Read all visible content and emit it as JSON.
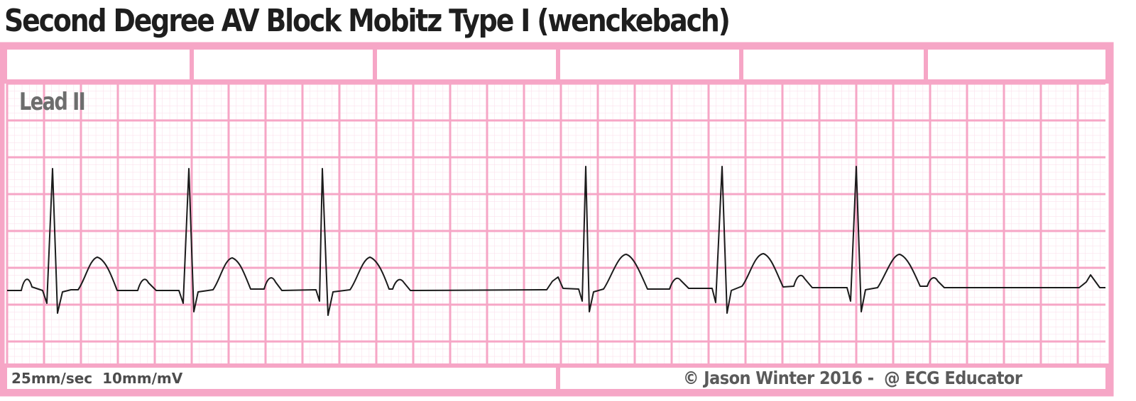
{
  "title": "Second Degree AV Block Mobitz Type I (wenckebach)",
  "lead_label": "Lead II",
  "paper_settings": "25mm/sec  10mm/mV",
  "credit": "© Jason Winter 2016 -  @ ECG Educator",
  "colors": {
    "major_grid": "#f6a6c6",
    "minor_grid": "#fadbe8",
    "trace": "#1b1b1b",
    "background": "#ffffff"
  }
}
